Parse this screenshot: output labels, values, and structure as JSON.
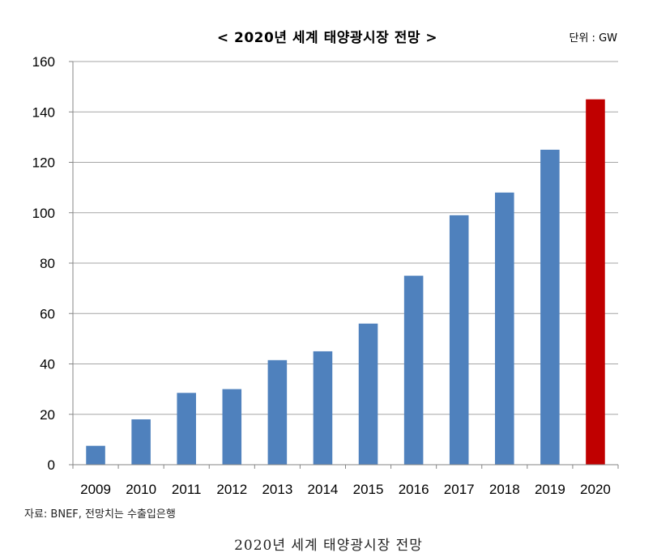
{
  "chart_data": {
    "type": "bar",
    "title": "< 2020년 세계 태양광시장 전망 >",
    "unit": "단위 : GW",
    "categories": [
      "2009",
      "2010",
      "2011",
      "2012",
      "2013",
      "2014",
      "2015",
      "2016",
      "2017",
      "2018",
      "2019",
      "2020"
    ],
    "values": [
      7.5,
      18,
      28.5,
      30,
      41.5,
      45,
      56,
      75,
      99,
      108,
      125,
      145
    ],
    "bar_colors": [
      "#4f81bd",
      "#4f81bd",
      "#4f81bd",
      "#4f81bd",
      "#4f81bd",
      "#4f81bd",
      "#4f81bd",
      "#4f81bd",
      "#4f81bd",
      "#4f81bd",
      "#4f81bd",
      "#c00000"
    ],
    "ylim": [
      0,
      160
    ],
    "yticks": [
      0,
      20,
      40,
      60,
      80,
      100,
      120,
      140,
      160
    ],
    "grid": true,
    "legend": "none"
  },
  "source_note": "자료: BNEF, 전망치는 수출입은행",
  "caption": "2020년 세계 태양광시장 전망"
}
